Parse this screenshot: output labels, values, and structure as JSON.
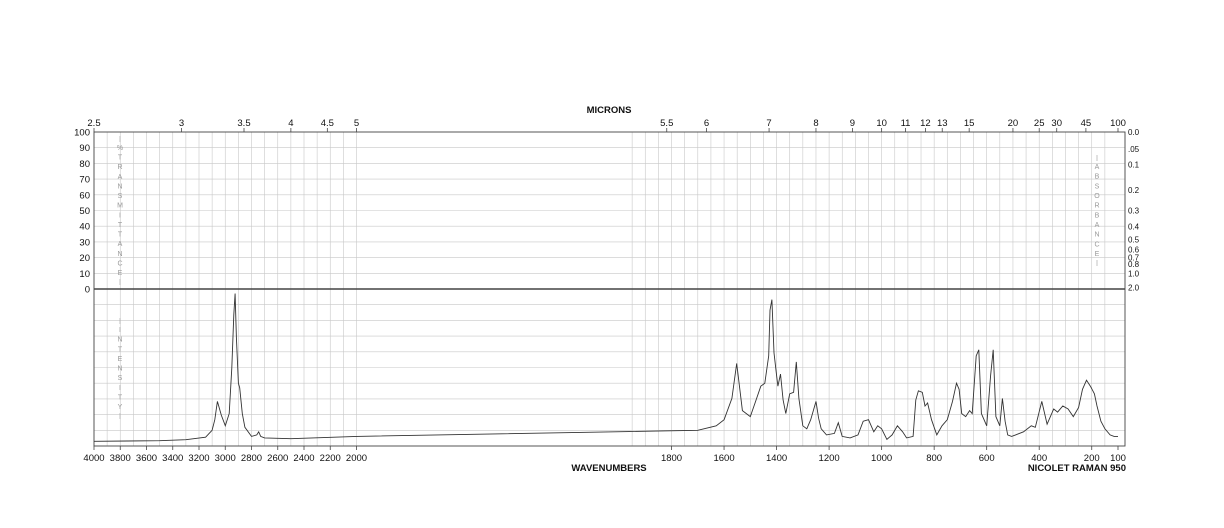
{
  "chart_data": {
    "type": "line",
    "top_axis_title": "MICRONS",
    "bottom_axis_title": "WAVENUMBERS",
    "footer_label": "NICOLET RAMAN 950",
    "left_vertical_label_upper": "%TRANSMITTANCE",
    "left_vertical_label_lower": "INTENSITY",
    "right_vertical_label": "ABSORBANCE",
    "x_range": [
      4000,
      100
    ],
    "x_ticks": [
      "4000",
      "3800",
      "3600",
      "3400",
      "3200",
      "3000",
      "2800",
      "2600",
      "2400",
      "2200",
      "2000",
      "1800",
      "1600",
      "1400",
      "1200",
      "1000",
      "800",
      "600",
      "400",
      "200",
      "100"
    ],
    "micron_ticks": [
      "2.5",
      "3",
      "3.5",
      "4",
      "4.5",
      "5",
      "5.5",
      "6",
      "7",
      "8",
      "9",
      "10",
      "11",
      "12",
      "13",
      "15",
      "20",
      "25",
      "30",
      "45",
      "100"
    ],
    "transmittance_ticks": [
      "100",
      "90",
      "80",
      "70",
      "60",
      "50",
      "40",
      "30",
      "20",
      "10",
      "0"
    ],
    "absorbance_ticks": [
      "0.0",
      ".05",
      "0.1",
      "0.2",
      "0.3",
      "0.4",
      "0.5",
      "0.6",
      "0.7",
      "0.8",
      "1.0",
      "2.0"
    ],
    "series": [
      {
        "color": "#333333",
        "x": [
          4000,
          3500,
          3300,
          3150,
          3100,
          3080,
          3060,
          3030,
          3000,
          2970,
          2950,
          2935,
          2925,
          2915,
          2900,
          2890,
          2870,
          2850,
          2800,
          2760,
          2745,
          2730,
          2700,
          2500,
          2000,
          1700,
          1630,
          1600,
          1570,
          1552,
          1530,
          1500,
          1480,
          1460,
          1445,
          1430,
          1425,
          1418,
          1410,
          1400,
          1395,
          1385,
          1375,
          1365,
          1350,
          1335,
          1325,
          1315,
          1300,
          1285,
          1270,
          1250,
          1240,
          1230,
          1210,
          1180,
          1165,
          1150,
          1120,
          1090,
          1070,
          1050,
          1030,
          1015,
          1000,
          980,
          960,
          940,
          920,
          905,
          880,
          870,
          860,
          845,
          835,
          825,
          810,
          790,
          770,
          750,
          730,
          715,
          705,
          695,
          680,
          665,
          655,
          640,
          630,
          620,
          600,
          585,
          575,
          565,
          550,
          540,
          530,
          520,
          505,
          490,
          460,
          430,
          415,
          390,
          370,
          345,
          330,
          310,
          290,
          270,
          250,
          235,
          220,
          205,
          190,
          180,
          165,
          150,
          130,
          115,
          100
        ],
        "y": [
          0.018,
          0.022,
          0.028,
          0.045,
          0.09,
          0.16,
          0.28,
          0.19,
          0.12,
          0.2,
          0.5,
          0.85,
          0.99,
          0.7,
          0.4,
          0.37,
          0.2,
          0.11,
          0.05,
          0.06,
          0.08,
          0.05,
          0.04,
          0.035,
          0.05,
          0.09,
          0.12,
          0.16,
          0.3,
          0.53,
          0.22,
          0.18,
          0.28,
          0.38,
          0.4,
          0.58,
          0.88,
          0.95,
          0.6,
          0.45,
          0.38,
          0.46,
          0.29,
          0.2,
          0.33,
          0.34,
          0.54,
          0.3,
          0.12,
          0.1,
          0.16,
          0.28,
          0.17,
          0.1,
          0.06,
          0.07,
          0.14,
          0.05,
          0.04,
          0.06,
          0.15,
          0.16,
          0.08,
          0.12,
          0.1,
          0.03,
          0.06,
          0.12,
          0.08,
          0.04,
          0.05,
          0.29,
          0.35,
          0.34,
          0.25,
          0.27,
          0.16,
          0.06,
          0.12,
          0.16,
          0.28,
          0.4,
          0.36,
          0.2,
          0.18,
          0.22,
          0.2,
          0.58,
          0.62,
          0.2,
          0.12,
          0.45,
          0.62,
          0.18,
          0.12,
          0.3,
          0.15,
          0.06,
          0.05,
          0.06,
          0.08,
          0.12,
          0.11,
          0.28,
          0.13,
          0.23,
          0.21,
          0.25,
          0.23,
          0.18,
          0.24,
          0.36,
          0.42,
          0.38,
          0.33,
          0.25,
          0.15,
          0.1,
          0.06,
          0.05,
          0.05
        ]
      }
    ],
    "grid": true
  }
}
